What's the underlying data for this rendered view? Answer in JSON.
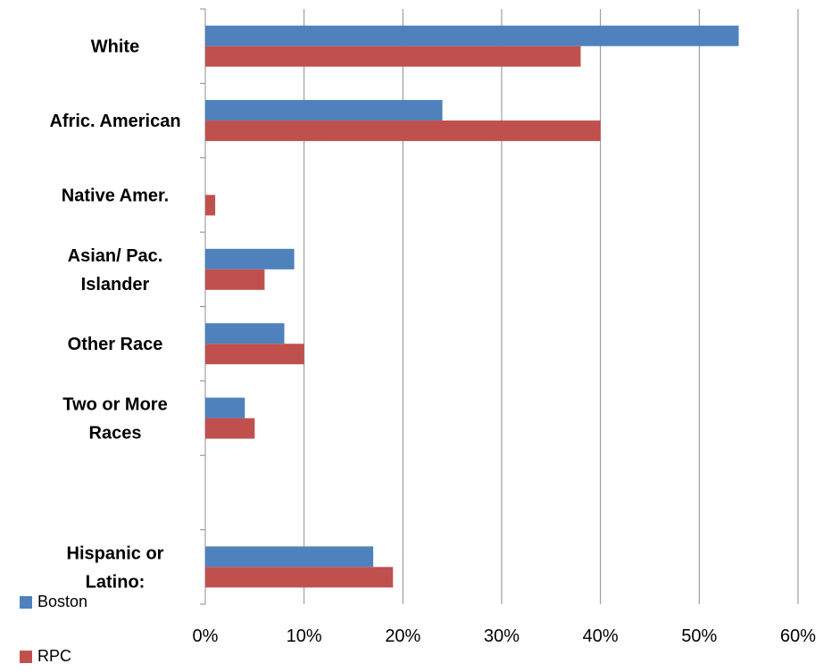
{
  "chart_data": {
    "type": "bar",
    "orientation": "horizontal",
    "categories": [
      "White",
      "Afric. American",
      "Native Amer.",
      "Asian/ Pac. Islander",
      "Other Race",
      "Two or More Races",
      "",
      "Hispanic or Latino:"
    ],
    "category_lines": [
      [
        "White"
      ],
      [
        "Afric. American"
      ],
      [
        "Native Amer."
      ],
      [
        "Asian/ Pac.",
        "Islander"
      ],
      [
        "Other Race"
      ],
      [
        "Two or More",
        "Races"
      ],
      [],
      [
        "Hispanic or",
        "Latino:"
      ]
    ],
    "series": [
      {
        "name": "Boston",
        "color": "#4F81BD",
        "values": [
          54,
          24,
          0,
          9,
          8,
          4,
          null,
          17
        ]
      },
      {
        "name": "RPC",
        "color": "#C0504D",
        "values": [
          38,
          40,
          1,
          6,
          10,
          5,
          null,
          19
        ]
      }
    ],
    "xlim": [
      0,
      60
    ],
    "xticks": [
      "0%",
      "10%",
      "20%",
      "30%",
      "40%",
      "50%",
      "60%"
    ],
    "grid": true,
    "legend_placement": "bottom-left"
  },
  "legend": [
    {
      "label": "Boston",
      "color": "#4F81BD"
    },
    {
      "label": "RPC",
      "color": "#C0504D"
    }
  ]
}
